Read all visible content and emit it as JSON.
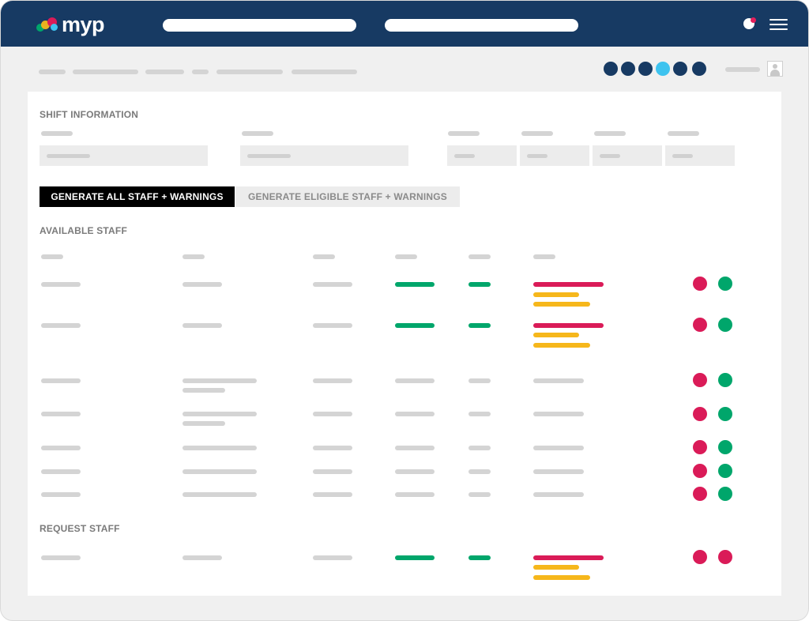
{
  "app": {
    "logo_text": "myp",
    "brand_colors": {
      "navy": "#173a63",
      "red": "#da1b58",
      "green": "#00a66b",
      "yellow": "#f6b71b",
      "cyan": "#3ec3ef"
    }
  },
  "header": {
    "notification_icon": "notification-dot-icon",
    "menu_icon": "hamburger-menu-icon"
  },
  "progress": {
    "total_steps": 6,
    "current_step": 4
  },
  "shift_information": {
    "title": "SHIFT INFORMATION"
  },
  "actions": {
    "generate_all": "GENERATE ALL STAFF + WARNINGS",
    "generate_eligible": "GENERATE ELIGIBLE STAFF + WARNINGS"
  },
  "available_staff": {
    "title": "AVAILABLE STAFF",
    "rows": [
      {
        "status_dots": [
          "red",
          "green"
        ]
      },
      {
        "status_dots": [
          "red",
          "green"
        ]
      },
      {
        "status_dots": [
          "red",
          "green"
        ]
      },
      {
        "status_dots": [
          "red",
          "green"
        ]
      },
      {
        "status_dots": [
          "red",
          "green"
        ]
      },
      {
        "status_dots": [
          "red",
          "green"
        ]
      },
      {
        "status_dots": [
          "red",
          "green"
        ]
      }
    ]
  },
  "request_staff": {
    "title": "REQUEST STAFF",
    "rows": [
      {
        "status_dots": [
          "red",
          "red"
        ]
      }
    ]
  }
}
